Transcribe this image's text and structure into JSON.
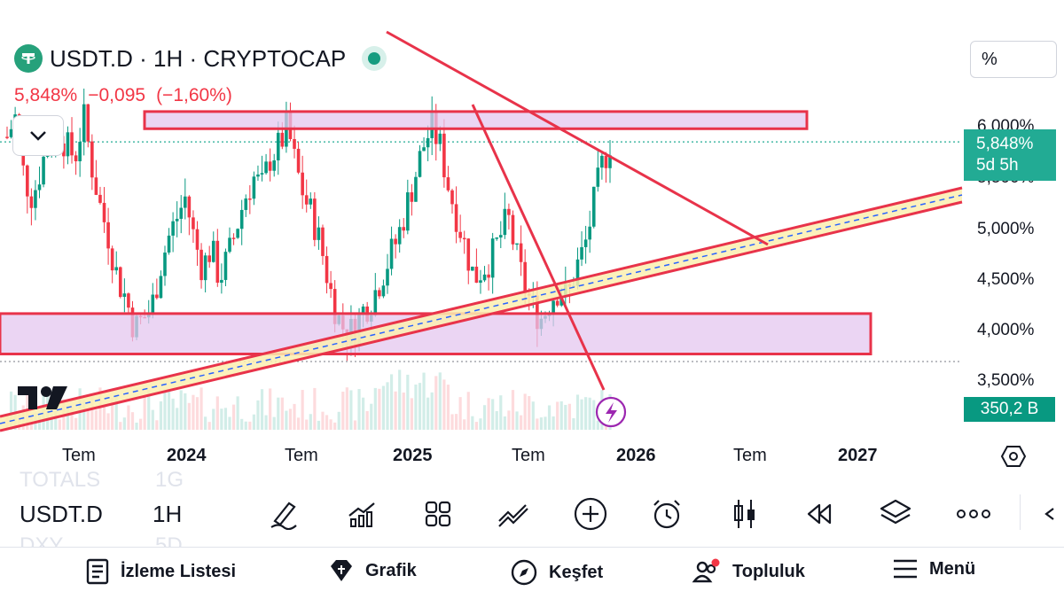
{
  "header": {
    "symbol_title": "USDT.D · 1H · CRYPTOCAP",
    "price_pct": "5,848%",
    "change_abs": "−0,095",
    "change_pct": "(−1,60%)"
  },
  "scale_mode": "%",
  "price_axis": {
    "ticks": [
      "6,000%",
      "5,500%",
      "5,000%",
      "4,500%",
      "4,000%",
      "3,500%"
    ],
    "last_price": "5,848%",
    "countdown": "5d 5h",
    "volume": "350,2 B"
  },
  "time_axis": {
    "labels": [
      "Tem",
      "2024",
      "Tem",
      "2025",
      "Tem",
      "2026",
      "Tem",
      "2027"
    ],
    "years": [
      false,
      true,
      false,
      true,
      false,
      true,
      false,
      true
    ]
  },
  "toolbar": {
    "symbol": "USDT.D",
    "interval": "1H",
    "ghost_symbol_1": "TOTALS",
    "ghost_interval_1": "1G",
    "ghost_symbol_2": "DXY",
    "ghost_interval_2": "5D",
    "tools": [
      "draw-icon",
      "indicators-icon",
      "layout-grid-icon",
      "strategy-icon",
      "add-icon",
      "alarm-icon",
      "candles-icon",
      "replay-icon",
      "layers-icon",
      "more-icon",
      "back-icon"
    ]
  },
  "bottom_nav": {
    "watchlist": "İzleme Listesi",
    "chart": "Grafik",
    "explore": "Keşfet",
    "community": "Topluluk",
    "menu": "Menü"
  },
  "colors": {
    "up": "#089981",
    "down": "#f23645",
    "drawing": "#e8334a",
    "zone_fill": "#e4c7ef",
    "channel_fill": "#fbeeb0",
    "accent_purple": "#9c27b0"
  },
  "chart_data": {
    "type": "candlestick",
    "symbol": "USDT.D",
    "unit": "%",
    "ylim": [
      3.4,
      6.35
    ],
    "close_series": [
      5.9,
      6.1,
      5.5,
      5.3,
      5.6,
      5.9,
      6.0,
      5.8,
      5.7,
      6.1,
      5.6,
      5.2,
      4.9,
      4.5,
      4.3,
      4.0,
      4.1,
      4.2,
      4.6,
      4.9,
      5.1,
      5.3,
      4.9,
      4.6,
      4.8,
      4.5,
      4.7,
      5.0,
      5.3,
      5.5,
      5.4,
      5.7,
      5.8,
      6.0,
      5.6,
      5.3,
      5.1,
      4.8,
      4.4,
      4.1,
      3.95,
      4.0,
      4.2,
      4.3,
      4.5,
      4.7,
      4.9,
      5.2,
      5.5,
      5.8,
      6.0,
      5.8,
      5.4,
      5.1,
      4.8,
      4.5,
      4.6,
      4.7,
      4.9,
      5.1,
      4.7,
      4.4,
      4.2,
      4.1,
      4.3,
      4.4,
      4.3,
      4.6,
      4.8,
      5.2,
      5.6,
      5.85
    ],
    "zones": {
      "resistance": [
        5.98,
        6.15
      ],
      "support": [
        3.75,
        4.15
      ]
    }
  }
}
